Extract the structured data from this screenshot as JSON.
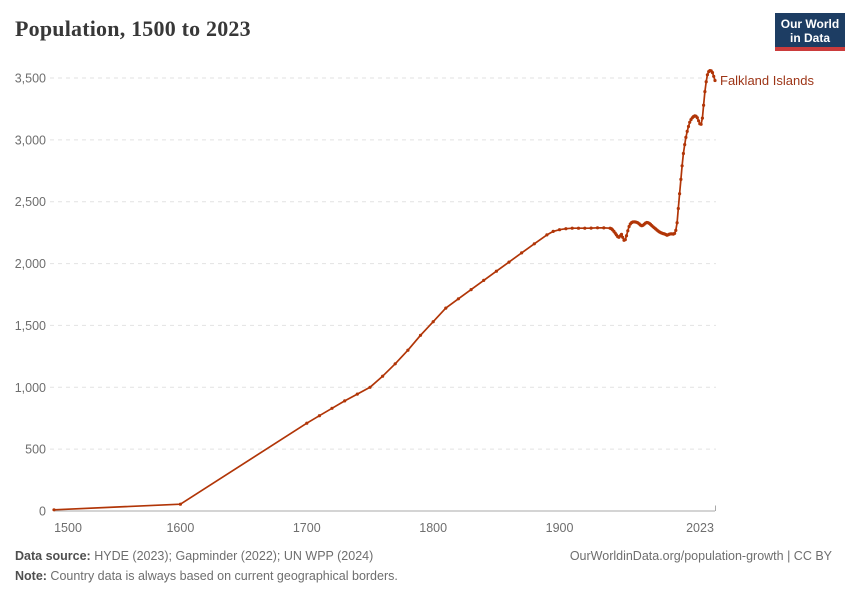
{
  "header": {
    "title": "Population, 1500 to 2023",
    "logo_line1": "Our World",
    "logo_line2": "in Data"
  },
  "chart_data": {
    "type": "line",
    "title": "Population, 1500 to 2023",
    "series_name": "Falkland Islands",
    "line_color": "#b13507",
    "label_color": "#9d3517",
    "grid": "horizontal-dashed",
    "legend_position": "end-of-line-label",
    "xlim": [
      1500,
      2023
    ],
    "ylim": [
      0,
      3500
    ],
    "x_ticks": [
      {
        "label": "1500",
        "year": 1500
      },
      {
        "label": "1600",
        "year": 1600
      },
      {
        "label": "1700",
        "year": 1700
      },
      {
        "label": "1800",
        "year": 1800
      },
      {
        "label": "1900",
        "year": 1900
      },
      {
        "label": "2023",
        "year": 2023
      }
    ],
    "y_ticks": [
      {
        "label": "0",
        "value": 0
      },
      {
        "label": "500",
        "value": 500
      },
      {
        "label": "1,000",
        "value": 1000
      },
      {
        "label": "1,500",
        "value": 1500
      },
      {
        "label": "2,000",
        "value": 2000
      },
      {
        "label": "2,500",
        "value": 2500
      },
      {
        "label": "3,000",
        "value": 3000
      },
      {
        "label": "3,500",
        "value": 3500
      }
    ],
    "points": [
      [
        1500,
        10
      ],
      [
        1600,
        55
      ],
      [
        1700,
        710
      ],
      [
        1710,
        770
      ],
      [
        1720,
        830
      ],
      [
        1730,
        890
      ],
      [
        1740,
        945
      ],
      [
        1750,
        1000
      ],
      [
        1760,
        1090
      ],
      [
        1770,
        1190
      ],
      [
        1780,
        1300
      ],
      [
        1790,
        1420
      ],
      [
        1800,
        1530
      ],
      [
        1810,
        1640
      ],
      [
        1820,
        1715
      ],
      [
        1830,
        1790
      ],
      [
        1840,
        1864
      ],
      [
        1850,
        1938
      ],
      [
        1860,
        2012
      ],
      [
        1870,
        2086
      ],
      [
        1880,
        2160
      ],
      [
        1890,
        2232
      ],
      [
        1895,
        2260
      ],
      [
        1900,
        2274
      ],
      [
        1905,
        2282
      ],
      [
        1910,
        2286
      ],
      [
        1915,
        2286
      ],
      [
        1920,
        2286
      ],
      [
        1925,
        2287
      ],
      [
        1930,
        2289
      ],
      [
        1935,
        2288
      ],
      [
        1940,
        2286
      ],
      [
        1941,
        2282
      ],
      [
        1942,
        2272
      ],
      [
        1943,
        2260
      ],
      [
        1944,
        2246
      ],
      [
        1945,
        2232
      ],
      [
        1946,
        2218
      ],
      [
        1947,
        2212
      ],
      [
        1948,
        2224
      ],
      [
        1949,
        2236
      ],
      [
        1950,
        2212
      ],
      [
        1951,
        2188
      ],
      [
        1952,
        2194
      ],
      [
        1953,
        2225
      ],
      [
        1954,
        2265
      ],
      [
        1955,
        2300
      ],
      [
        1956,
        2320
      ],
      [
        1957,
        2331
      ],
      [
        1958,
        2336
      ],
      [
        1959,
        2337
      ],
      [
        1960,
        2336
      ],
      [
        1961,
        2334
      ],
      [
        1962,
        2329
      ],
      [
        1963,
        2321
      ],
      [
        1964,
        2312
      ],
      [
        1965,
        2306
      ],
      [
        1966,
        2309
      ],
      [
        1967,
        2318
      ],
      [
        1968,
        2327
      ],
      [
        1969,
        2332
      ],
      [
        1970,
        2330
      ],
      [
        1971,
        2325
      ],
      [
        1972,
        2317
      ],
      [
        1973,
        2307
      ],
      [
        1974,
        2297
      ],
      [
        1975,
        2289
      ],
      [
        1976,
        2280
      ],
      [
        1977,
        2271
      ],
      [
        1978,
        2263
      ],
      [
        1979,
        2256
      ],
      [
        1980,
        2250
      ],
      [
        1981,
        2246
      ],
      [
        1982,
        2242
      ],
      [
        1983,
        2240
      ],
      [
        1984,
        2235
      ],
      [
        1985,
        2229
      ],
      [
        1986,
        2233
      ],
      [
        1987,
        2238
      ],
      [
        1988,
        2240
      ],
      [
        1989,
        2240
      ],
      [
        1990,
        2238
      ],
      [
        1991,
        2244
      ],
      [
        1992,
        2268
      ],
      [
        1993,
        2330
      ],
      [
        1994,
        2445
      ],
      [
        1995,
        2565
      ],
      [
        1996,
        2680
      ],
      [
        1997,
        2790
      ],
      [
        1998,
        2890
      ],
      [
        1999,
        2962
      ],
      [
        2000,
        3020
      ],
      [
        2001,
        3068
      ],
      [
        2002,
        3108
      ],
      [
        2003,
        3142
      ],
      [
        2004,
        3164
      ],
      [
        2005,
        3178
      ],
      [
        2006,
        3188
      ],
      [
        2007,
        3194
      ],
      [
        2008,
        3191
      ],
      [
        2009,
        3179
      ],
      [
        2010,
        3154
      ],
      [
        2011,
        3130
      ],
      [
        2012,
        3126
      ],
      [
        2013,
        3176
      ],
      [
        2014,
        3280
      ],
      [
        2015,
        3390
      ],
      [
        2016,
        3470
      ],
      [
        2017,
        3526
      ],
      [
        2018,
        3552
      ],
      [
        2019,
        3560
      ],
      [
        2020,
        3557
      ],
      [
        2021,
        3544
      ],
      [
        2022,
        3514
      ],
      [
        2023,
        3480
      ]
    ]
  },
  "footer": {
    "source_label": "Data source:",
    "source_text": " HYDE (2023); Gapminder (2022); UN WPP (2024)",
    "note_label": "Note:",
    "note_text": " Country data is always based on current geographical borders.",
    "right_text": "OurWorldinData.org/population-growth | CC BY"
  },
  "colors": {
    "line": "#b13507",
    "series_label": "#9d3517",
    "gridline": "#e2e2e2",
    "axis": "#a9a9a9",
    "tick_label": "#6e6e6e",
    "title": "#383838",
    "logo_bg": "#1d3d63",
    "logo_stripe": "#cb3b3b"
  }
}
